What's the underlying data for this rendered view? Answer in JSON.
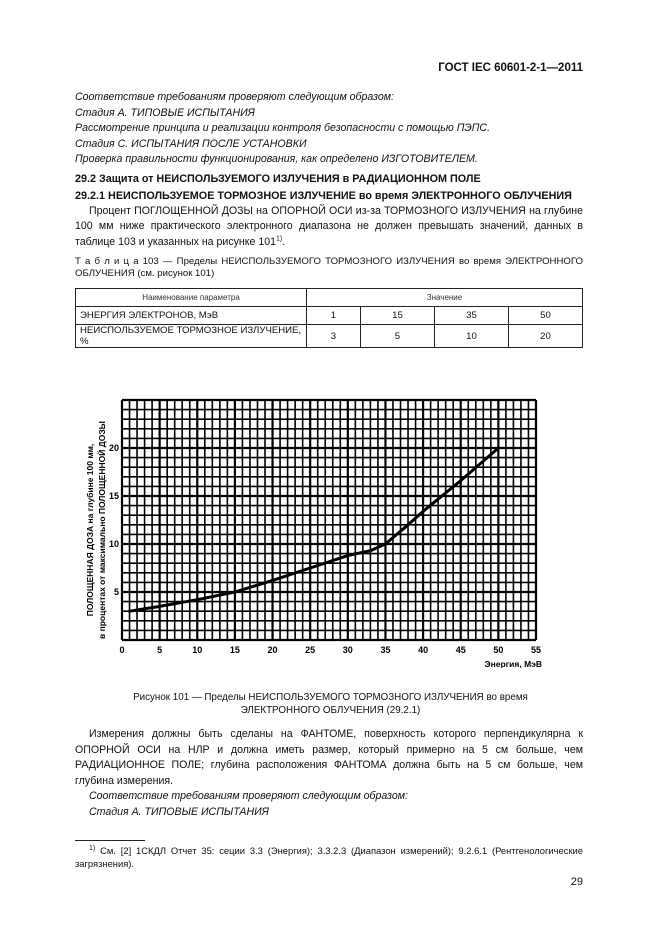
{
  "header": {
    "standard": "ГОСТ IEC 60601-2-1—2011"
  },
  "intro_italic": [
    "Соответствие требованиям проверяют следующим образом:",
    "Стадия А. ТИПОВЫЕ ИСПЫТАНИЯ",
    "Рассмотрение принципа и реализации контроля безопасности с помощью ПЭПС.",
    "Стадия С. ИСПЫТАНИЯ ПОСЛЕ УСТАНОВКИ",
    "Проверка правильности функционирования, как определено ИЗГОТОВИТЕЛЕМ."
  ],
  "section": {
    "heading": "29.2 Защита от НЕИСПОЛЬЗУЕМОГО ИЗЛУЧЕНИЯ в РАДИАЦИОННОМ ПОЛЕ",
    "subheading": "29.2.1 НЕИСПОЛЬЗУЕМОЕ ТОРМОЗНОЕ ИЗЛУЧЕНИЕ во время ЭЛЕКТРОННОГО ОБЛУЧЕНИЯ",
    "para": "Процент ПОГЛОЩЕННОЙ ДОЗЫ на ОПОРНОЙ ОСИ из-за ТОРМОЗНОГО ИЗЛУЧЕНИЯ на глубине 100 мм ниже практического электронного диапазона не должен превышать значений, данных в таблице 103 и указанных на рисунке 101",
    "para_sup": "1)",
    "para_end": "."
  },
  "table": {
    "caption_lead": "Т а б л и ц а  103",
    "caption": " — Пределы НЕИСПОЛЬЗУЕМОГО ТОРМОЗНОГО ИЗЛУЧЕНИЯ во время ЭЛЕКТРОННОГО ОБЛУЧЕНИЯ (см. рисунок 101)",
    "headers": [
      "Наименование параметра",
      "Значение"
    ],
    "rows": [
      {
        "label": "ЭНЕРГИЯ ЭЛЕКТРОНОВ, МэВ",
        "values": [
          "1",
          "15",
          "35",
          "50"
        ]
      },
      {
        "label": "НЕИСПОЛЬЗУЕМОЕ ТОРМОЗНОЕ ИЗЛУЧЕНИЕ, %",
        "values": [
          "3",
          "5",
          "10",
          "20"
        ]
      }
    ]
  },
  "chart_data": {
    "type": "line",
    "xlabel": "Энергия, МэВ",
    "ylabel_line1": "ПОЛОЩЕННАЯ ДОЗА на глубине 100 мм,",
    "ylabel_line2": "в процентах от максимально ПОЛОЩЕННОЙ ДОЗЫ",
    "xlim": [
      0,
      55
    ],
    "ylim": [
      0,
      25
    ],
    "xticks": [
      "0",
      "5",
      "10",
      "15",
      "20",
      "25",
      "30",
      "35",
      "40",
      "45",
      "50",
      "55"
    ],
    "yticks": [
      "0",
      "5",
      "10",
      "15",
      "20"
    ],
    "grid": true,
    "x": [
      1,
      5,
      10,
      15,
      20,
      25,
      30,
      33,
      35,
      38,
      40,
      45,
      50
    ],
    "y": [
      3,
      3.5,
      4.2,
      5,
      6.2,
      7.5,
      8.8,
      9.3,
      10,
      12,
      13.4,
      16.6,
      20
    ]
  },
  "figure": {
    "caption_line1": "Рисунок 101 — Пределы НЕИСПОЛЬЗУЕМОГО ТОРМОЗНОГО ИЗЛУЧЕНИЯ во время",
    "caption_line2": "ЭЛЕКТРОННОГО ОБЛУЧЕНИЯ (29.2.1)"
  },
  "after": {
    "para": "Измерения должны быть сделаны на ФАНТОМЕ, поверхность которого перпендикулярна к ОПОРНОЙ ОСИ на НЛР и должна иметь размер, который примерно на 5 см больше, чем РАДИАЦИОННОЕ ПОЛЕ; глубина расположения ФАНТОМА должна быть на 5 см больше, чем глубина измерения.",
    "italic1": "Соответствие требованиям проверяют следующим образом:",
    "italic2": "Стадия А. ТИПОВЫЕ ИСПЫТАНИЯ"
  },
  "footnote": {
    "mark": "1)",
    "text": " См. [2] 1СКДЛ Отчет 35: сeции 3.3 (Энергия); 3.3.2.3 (Диапазон измерений); 9.2.6.1 (Рентгенологические загрязнения)."
  },
  "page_number": "29"
}
